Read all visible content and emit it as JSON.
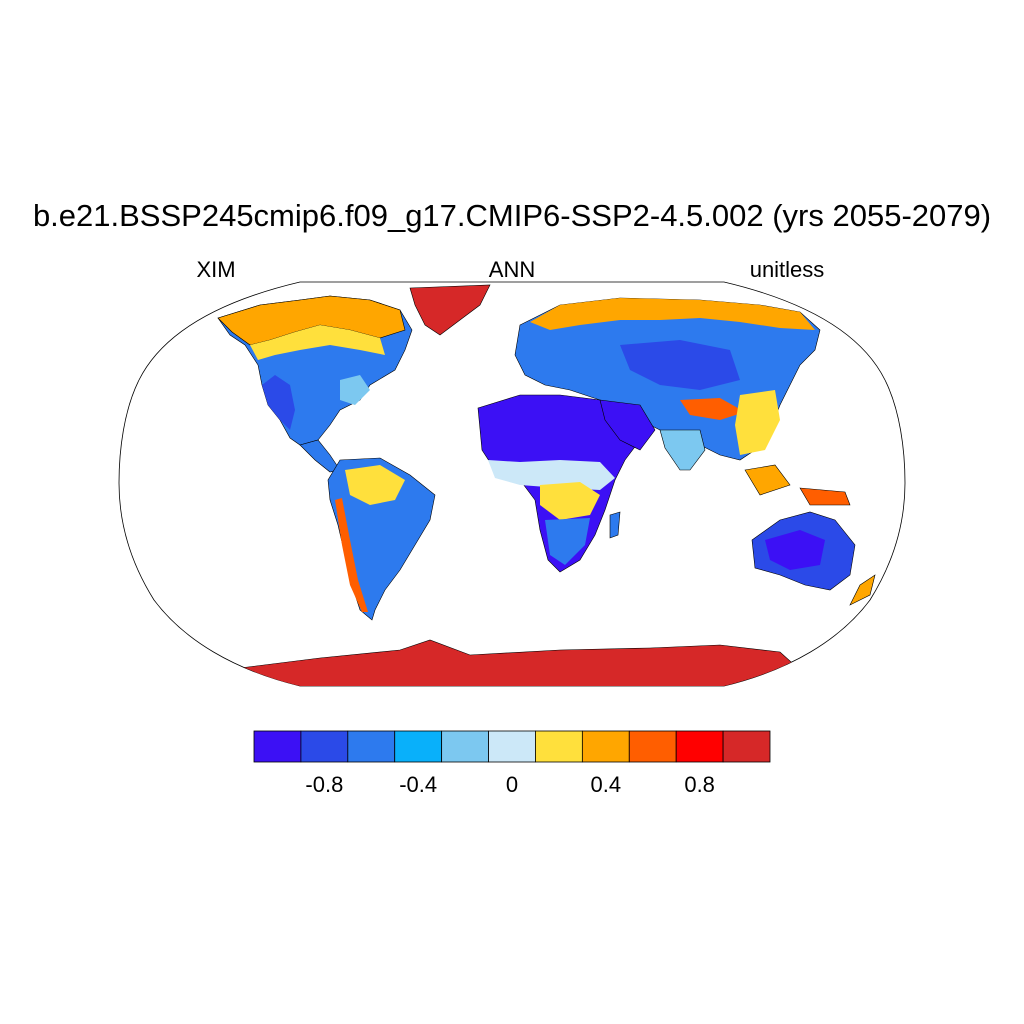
{
  "title": "b.e21.BSSP245cmip6.f09_g17.CMIP6-SSP2-4.5.002 (yrs 2055-2079)",
  "subtitle_left": "XIM",
  "subtitle_center": "ANN",
  "subtitle_right": "unitless",
  "colorbar": {
    "colors": [
      "#3c10f5",
      "#2b4ae8",
      "#2d7aee",
      "#09b0fa",
      "#7cc8f0",
      "#cce8f8",
      "#ffe03c",
      "#ffa600",
      "#ff5e00",
      "#ff0000",
      "#d62828"
    ],
    "tick_labels": [
      "-0.8",
      "-0.4",
      "0",
      "0.4",
      "0.8"
    ],
    "tick_values": [
      -0.8,
      -0.4,
      0,
      0.4,
      0.8
    ],
    "levels": [
      -1.0,
      -0.8,
      -0.6,
      -0.4,
      -0.2,
      0,
      0.2,
      0.4,
      0.6,
      0.8,
      1.0
    ]
  },
  "map": {
    "projection": "Robinson",
    "ocean_color": "#ffffff",
    "regions": [
      {
        "name": "Antarctica",
        "value": 1.0
      },
      {
        "name": "Greenland",
        "value": 1.0
      },
      {
        "name": "Sahara / Arabia",
        "value": -1.0
      },
      {
        "name": "Australia interior",
        "value": -0.9
      },
      {
        "name": "Western North America",
        "value": -0.5
      },
      {
        "name": "Central Asia",
        "value": -0.5
      },
      {
        "name": "Siberia / Arctic Asia",
        "value": 0.5
      },
      {
        "name": "Canada Arctic",
        "value": 0.5
      },
      {
        "name": "Tibetan Plateau",
        "value": 0.8
      },
      {
        "name": "Maritime Continent",
        "value": 0.6
      },
      {
        "name": "Amazon",
        "value": 0.3
      },
      {
        "name": "Andes",
        "value": 0.7
      }
    ]
  }
}
